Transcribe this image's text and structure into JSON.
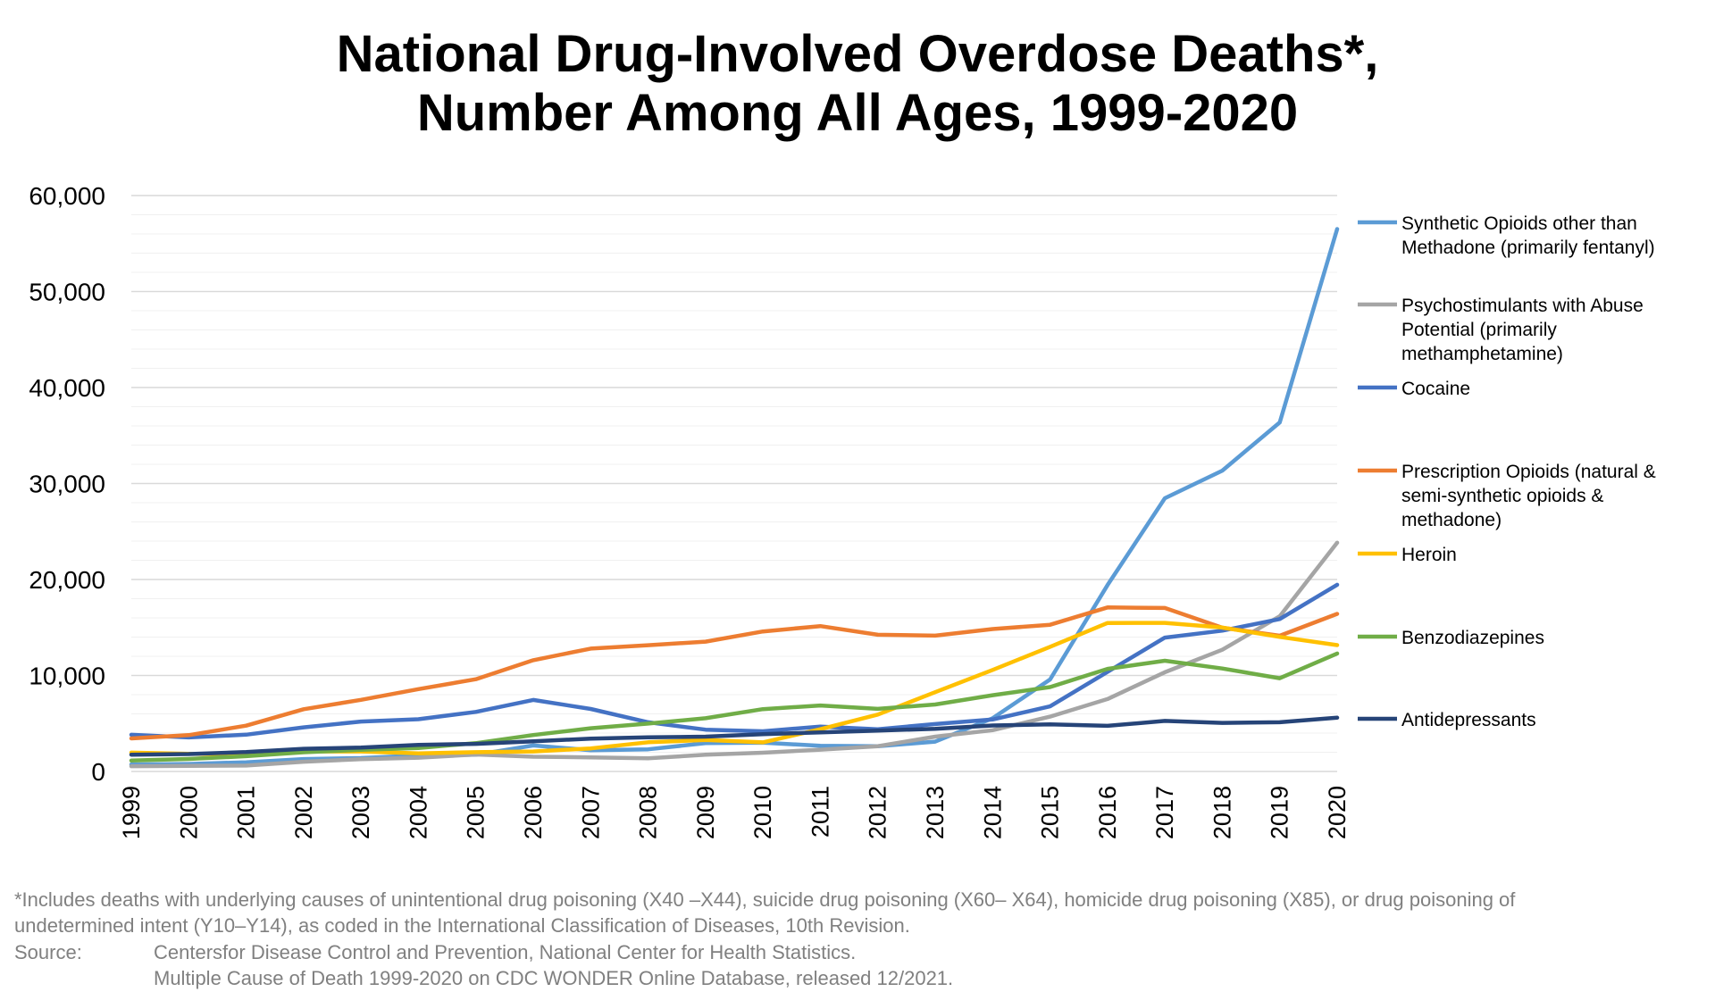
{
  "chart_data": {
    "type": "line",
    "title_lines": [
      "National Drug-Involved Overdose Deaths*,",
      "Number Among All Ages, 1999-2020"
    ],
    "xlabel": "",
    "ylabel": "",
    "ylim": [
      0,
      60000
    ],
    "yticks": [
      "0",
      "10,000",
      "20,000",
      "30,000",
      "40,000",
      "50,000",
      "60,000"
    ],
    "x": [
      "1999",
      "2000",
      "2001",
      "2002",
      "2003",
      "2004",
      "2005",
      "2006",
      "2007",
      "2008",
      "2009",
      "2010",
      "2011",
      "2012",
      "2013",
      "2014",
      "2015",
      "2016",
      "2017",
      "2018",
      "2019",
      "2020"
    ],
    "grid": "horizontal major and minor",
    "legend_position": "right",
    "series": [
      {
        "name": "Synthetic Opioids other than Methadone (primarily fentanyl)",
        "legend_lines": [
          "Synthetic Opioids other than",
          "Methadone (primarily fentanyl)"
        ],
        "color": "#5B9BD5",
        "values": [
          730,
          782,
          957,
          1295,
          1400,
          1664,
          1742,
          2707,
          2213,
          2306,
          2946,
          3007,
          2666,
          2628,
          3105,
          5544,
          9580,
          19413,
          28466,
          31335,
          36359,
          56516
        ]
      },
      {
        "name": "Psychostimulants with Abuse Potential (primarily methamphetamine)",
        "legend_lines": [
          "Psychostimulants with Abuse",
          "Potential (primarily",
          "methamphetamine)"
        ],
        "color": "#A5A5A5",
        "values": [
          547,
          578,
          610,
          1011,
          1279,
          1431,
          1771,
          1536,
          1468,
          1369,
          1743,
          1951,
          2266,
          2628,
          3627,
          4298,
          5716,
          7542,
          10333,
          12676,
          16167,
          23837
        ]
      },
      {
        "name": "Cocaine",
        "legend_lines": [
          "Cocaine"
        ],
        "color": "#4472C4",
        "values": [
          3822,
          3544,
          3833,
          4599,
          5199,
          5443,
          6208,
          7448,
          6512,
          5129,
          4350,
          4183,
          4681,
          4404,
          4944,
          5415,
          6784,
          10375,
          13942,
          14666,
          15883,
          19447
        ]
      },
      {
        "name": "Prescription Opioids (natural & semi-synthetic opioids & methadone)",
        "legend_lines": [
          "Prescription Opioids (natural &",
          "semi-synthetic opioids &",
          "methadone)"
        ],
        "color": "#ED7D31",
        "values": [
          3442,
          3785,
          4770,
          6484,
          7456,
          8577,
          9612,
          11589,
          12796,
          13149,
          13523,
          14583,
          15140,
          14240,
          14145,
          14838,
          15281,
          17087,
          17029,
          14975,
          14139,
          16416
        ]
      },
      {
        "name": "Heroin",
        "legend_lines": [
          "Heroin"
        ],
        "color": "#FFC000",
        "values": [
          1960,
          1842,
          1779,
          2089,
          2080,
          1878,
          2009,
          2088,
          2399,
          3041,
          3278,
          3036,
          4397,
          5925,
          8257,
          10574,
          12989,
          15469,
          15482,
          14996,
          14019,
          13165
        ]
      },
      {
        "name": "Benzodiazepines",
        "legend_lines": [
          "Benzodiazepines"
        ],
        "color": "#70AD47",
        "values": [
          1135,
          1298,
          1594,
          2004,
          2248,
          2451,
          2948,
          3795,
          4502,
          4988,
          5542,
          6497,
          6872,
          6524,
          6973,
          7945,
          8791,
          10684,
          11537,
          10724,
          9711,
          12290
        ]
      },
      {
        "name": "Antidepressants",
        "legend_lines": [
          "Antidepressants"
        ],
        "color": "#264478",
        "values": [
          1749,
          1810,
          2019,
          2363,
          2482,
          2763,
          2875,
          3136,
          3421,
          3556,
          3630,
          3889,
          4066,
          4249,
          4443,
          4788,
          4900,
          4750,
          5269,
          5064,
          5128,
          5597
        ]
      }
    ]
  },
  "footnote": {
    "line1": "*Includes deaths with underlying causes of unintentional drug poisoning (X40 –X44), suicide drug poisoning (X60– X64), homicide drug poisoning (X85), or drug poisoning of",
    "line2": "undetermined intent (Y10–Y14), as coded in the International Classification of Diseases, 10th Revision.",
    "source_label": "Source:",
    "source_line1": "Centersfor Disease Control and Prevention, National Center for Health Statistics.",
    "source_line2": "Multiple Cause of Death 1999-2020 on CDC WONDER Online Database, released 12/2021."
  }
}
